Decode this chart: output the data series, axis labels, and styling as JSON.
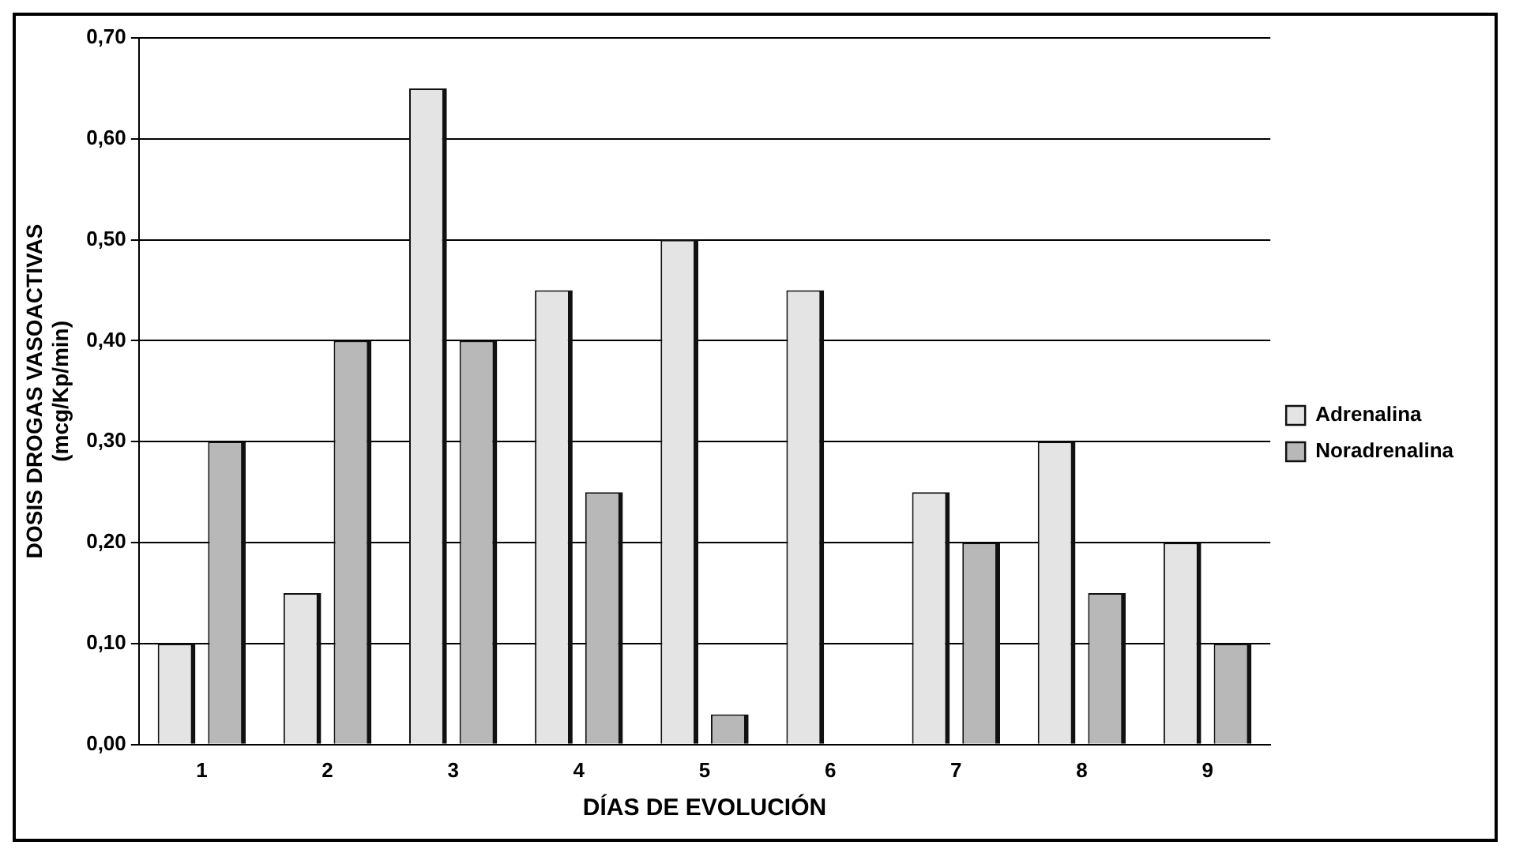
{
  "chart_data": {
    "type": "bar",
    "xlabel": "DÍAS DE EVOLUCIÓN",
    "ylabel": "DOSIS DROGAS VASOACTIVAS\n(mcg/Kp/min)",
    "categories": [
      "1",
      "2",
      "3",
      "4",
      "5",
      "6",
      "7",
      "8",
      "9"
    ],
    "series": [
      {
        "name": "Adrenalina",
        "color": "#e4e4e4",
        "values": [
          0.1,
          0.15,
          0.65,
          0.45,
          0.5,
          0.45,
          0.25,
          0.3,
          0.2
        ]
      },
      {
        "name": "Noradrenalina",
        "color": "#b8b8b8",
        "values": [
          0.3,
          0.4,
          0.4,
          0.25,
          0.03,
          0,
          0.2,
          0.15,
          0.1
        ]
      }
    ],
    "ylim": [
      0,
      0.7
    ],
    "yticks": [
      {
        "value": 0,
        "label": "0,00"
      },
      {
        "value": 0.1,
        "label": "0,10"
      },
      {
        "value": 0.2,
        "label": "0,20"
      },
      {
        "value": 0.3,
        "label": "0,30"
      },
      {
        "value": 0.4,
        "label": "0,40"
      },
      {
        "value": 0.5,
        "label": "0,50"
      },
      {
        "value": 0.6,
        "label": "0,60"
      },
      {
        "value": 0.7,
        "label": "0,70"
      }
    ],
    "grid": "y",
    "legend": "right"
  }
}
